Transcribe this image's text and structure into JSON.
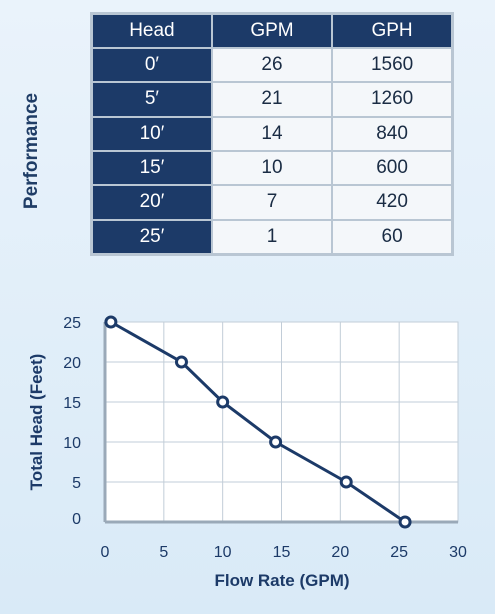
{
  "side_label": "Performance",
  "table": {
    "headers": [
      "Head",
      "GPM",
      "GPH"
    ],
    "rows": [
      {
        "head": "0′",
        "gpm": "26",
        "gph": "1560"
      },
      {
        "head": "5′",
        "gpm": "21",
        "gph": "1260"
      },
      {
        "head": "10′",
        "gpm": "14",
        "gph": "840"
      },
      {
        "head": "15′",
        "gpm": "10",
        "gph": "600"
      },
      {
        "head": "20′",
        "gpm": "7",
        "gph": "420"
      },
      {
        "head": "25′",
        "gpm": "1",
        "gph": "60"
      }
    ]
  },
  "chart_data": {
    "type": "line",
    "title": "",
    "xlabel": "Flow Rate (GPM)",
    "ylabel": "Total Head (Feet)",
    "xlim": [
      0,
      30
    ],
    "ylim": [
      0,
      25
    ],
    "xticks": [
      "0",
      "5",
      "10",
      "15",
      "20",
      "25",
      "30"
    ],
    "yticks": [
      "0",
      "5",
      "10",
      "15",
      "20",
      "25"
    ],
    "grid": true,
    "series": [
      {
        "x": [
          0.5,
          6.5,
          10,
          14.5,
          20.5,
          25.5
        ],
        "y": [
          25,
          20,
          15,
          10,
          5,
          0
        ]
      }
    ],
    "colors": {
      "line": "#1c3a68",
      "grid": "#c2cdd8",
      "axis": "#9aa9b8",
      "text": "#1c3a68"
    }
  }
}
